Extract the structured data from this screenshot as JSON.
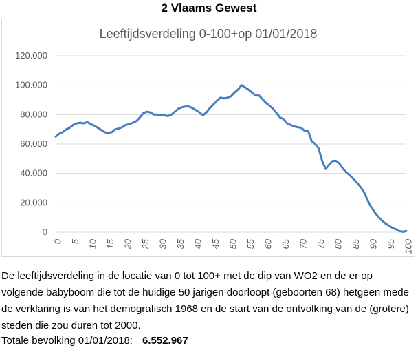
{
  "heading": "2 Vlaams Gewest",
  "description": "De leeftijdsverdeling in de locatie van 0 tot 100+ met de dip van WO2 en de er op volgende babyboom die tot de huidige 50 jarigen doorloopt (geboorten 68) hetgeen mede de verklaring is van het demografisch 1968 en de start van de ontvolking van de (grotere) steden die zou duren tot 2000.",
  "total": {
    "label": "Totale bevolking 01/01/2018:",
    "value": "6.552.967"
  },
  "chart_data": {
    "type": "line",
    "title": "Leeftijdsverdeling 0-100+op 01/01/2018",
    "xlabel": "",
    "ylabel": "",
    "xlim": [
      0,
      100
    ],
    "ylim": [
      0,
      120000
    ],
    "yticks": [
      0,
      20000,
      40000,
      60000,
      80000,
      100000,
      120000
    ],
    "ytick_labels": [
      "0",
      "20.000",
      "40.000",
      "60.000",
      "80.000",
      "100.000",
      "120.000"
    ],
    "xticks": [
      0,
      5,
      10,
      15,
      20,
      25,
      30,
      35,
      40,
      45,
      50,
      55,
      60,
      65,
      70,
      75,
      80,
      85,
      90,
      95,
      100
    ],
    "grid": "horizontal",
    "line_color": "#4a7dbf",
    "series": [
      {
        "x": [
          0,
          1,
          2,
          3,
          4,
          5,
          6,
          7,
          8,
          9,
          10,
          11,
          12,
          13,
          14,
          15,
          16,
          17,
          18,
          19,
          20,
          21,
          22,
          23,
          24,
          25,
          26,
          27,
          28,
          29,
          30,
          31,
          32,
          33,
          34,
          35,
          36,
          37,
          38,
          39,
          40,
          41,
          42,
          43,
          44,
          45,
          46,
          47,
          48,
          49,
          50,
          51,
          52,
          53,
          54,
          55,
          56,
          57,
          58,
          59,
          60,
          61,
          62,
          63,
          64,
          65,
          66,
          67,
          68,
          69,
          70,
          71,
          72,
          73,
          74,
          75,
          76,
          77,
          78,
          79,
          80,
          81,
          82,
          83,
          84,
          85,
          86,
          87,
          88,
          89,
          90,
          91,
          92,
          93,
          94,
          95,
          96,
          97,
          98,
          99,
          100
        ],
        "values": [
          65000,
          67000,
          68000,
          70000,
          71000,
          73000,
          74000,
          74500,
          74000,
          75000,
          73500,
          72500,
          71000,
          69500,
          68000,
          67500,
          68000,
          70000,
          70500,
          71500,
          73000,
          73500,
          74500,
          75500,
          78000,
          81000,
          82000,
          81500,
          80000,
          80000,
          79500,
          79500,
          79000,
          80000,
          82000,
          84000,
          85000,
          85500,
          85500,
          84500,
          83000,
          81500,
          79500,
          81500,
          84500,
          87000,
          89500,
          91500,
          91000,
          91500,
          92500,
          95000,
          97000,
          100000,
          98500,
          97000,
          95000,
          93000,
          93000,
          90500,
          88000,
          86000,
          84000,
          81000,
          78000,
          77000,
          74000,
          73000,
          72000,
          71500,
          71000,
          69000,
          69000,
          62000,
          60000,
          57000,
          48500,
          43000,
          46000,
          48500,
          48500,
          46500,
          43000,
          40500,
          38500,
          36000,
          33500,
          30500,
          27000,
          21500,
          17000,
          13500,
          10500,
          8000,
          6000,
          4500,
          3000,
          2000,
          800,
          300,
          800
        ]
      }
    ]
  }
}
